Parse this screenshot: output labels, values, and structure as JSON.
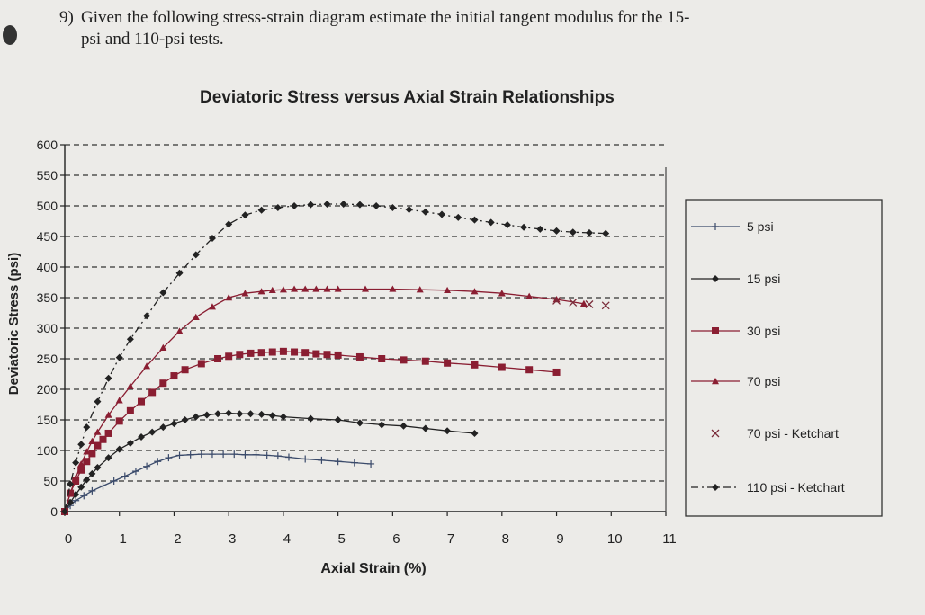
{
  "question": {
    "number": "9)",
    "line1": "Given the following stress-strain diagram estimate the initial tangent modulus for the 15-",
    "line2": "psi and 110-psi tests."
  },
  "chart_data": {
    "type": "line",
    "title": "Deviatoric Stress versus Axial Strain Relationships",
    "xlabel": "Axial Strain (%)",
    "ylabel": "Deviatoric Stress (psi)",
    "xlim": [
      0,
      11
    ],
    "ylim": [
      0,
      600
    ],
    "x_ticks": [
      "0",
      "1",
      "2",
      "3",
      "4",
      "5",
      "6",
      "7",
      "8",
      "9",
      "10",
      "11"
    ],
    "y_ticks": [
      "0",
      "50",
      "100",
      "150",
      "200",
      "250",
      "300",
      "350",
      "400",
      "450",
      "500",
      "550",
      "600"
    ],
    "grid": "horizontal dashed",
    "legend_position": "right",
    "series": [
      {
        "name": "5 psi",
        "color": "#3a4a6a",
        "marker": "plus",
        "dash": "solid",
        "x": [
          0,
          0.1,
          0.2,
          0.35,
          0.5,
          0.7,
          0.9,
          1.1,
          1.3,
          1.5,
          1.7,
          1.9,
          2.1,
          2.3,
          2.5,
          2.7,
          2.9,
          3.1,
          3.3,
          3.5,
          3.7,
          3.9,
          4.1,
          4.4,
          4.7,
          5.0,
          5.3,
          5.6
        ],
        "y": [
          0,
          10,
          18,
          26,
          34,
          42,
          50,
          58,
          66,
          74,
          82,
          88,
          92,
          93,
          94,
          94,
          94,
          94,
          93,
          93,
          92,
          91,
          89,
          86,
          84,
          82,
          80,
          78
        ]
      },
      {
        "name": "15 psi",
        "color": "#222222",
        "marker": "diamond",
        "dash": "solid",
        "x": [
          0,
          0.1,
          0.2,
          0.3,
          0.4,
          0.5,
          0.6,
          0.8,
          1.0,
          1.2,
          1.4,
          1.6,
          1.8,
          2.0,
          2.2,
          2.4,
          2.6,
          2.8,
          3.0,
          3.2,
          3.4,
          3.6,
          3.8,
          4.0,
          4.5,
          5.0,
          5.4,
          5.8,
          6.2,
          6.6,
          7.0,
          7.5
        ],
        "y": [
          0,
          15,
          28,
          40,
          52,
          62,
          72,
          88,
          102,
          112,
          122,
          130,
          138,
          144,
          150,
          155,
          158,
          160,
          161,
          160,
          160,
          159,
          157,
          155,
          152,
          150,
          145,
          142,
          140,
          136,
          132,
          128
        ]
      },
      {
        "name": "30 psi",
        "color": "#8a1e32",
        "marker": "square",
        "dash": "solid",
        "x": [
          0,
          0.1,
          0.2,
          0.3,
          0.4,
          0.5,
          0.6,
          0.7,
          0.8,
          1.0,
          1.2,
          1.4,
          1.6,
          1.8,
          2.0,
          2.2,
          2.5,
          2.8,
          3.0,
          3.2,
          3.4,
          3.6,
          3.8,
          4.0,
          4.2,
          4.4,
          4.6,
          4.8,
          5.0,
          5.4,
          5.8,
          6.2,
          6.6,
          7.0,
          7.5,
          8.0,
          8.5,
          9.0
        ],
        "y": [
          0,
          30,
          50,
          68,
          82,
          95,
          108,
          118,
          128,
          148,
          165,
          180,
          195,
          210,
          222,
          232,
          242,
          250,
          254,
          257,
          259,
          260,
          261,
          262,
          261,
          260,
          258,
          257,
          256,
          253,
          250,
          248,
          246,
          243,
          240,
          236,
          232,
          228
        ]
      },
      {
        "name": "70 psi",
        "color": "#8a1e32",
        "marker": "triangle",
        "dash": "solid",
        "x": [
          0,
          0.1,
          0.2,
          0.3,
          0.4,
          0.5,
          0.6,
          0.8,
          1.0,
          1.2,
          1.5,
          1.8,
          2.1,
          2.4,
          2.7,
          3.0,
          3.3,
          3.6,
          3.8,
          4.0,
          4.2,
          4.4,
          4.6,
          4.8,
          5.0,
          5.5,
          6.0,
          6.5,
          7.0,
          7.5,
          8.0,
          8.5,
          9.0,
          9.5
        ],
        "y": [
          0,
          30,
          55,
          78,
          98,
          115,
          130,
          158,
          182,
          205,
          238,
          268,
          295,
          318,
          335,
          350,
          357,
          360,
          362,
          363,
          364,
          364,
          364,
          364,
          364,
          364,
          364,
          363,
          362,
          360,
          357,
          352,
          347,
          340
        ]
      },
      {
        "name": "70 psi - Ketchart",
        "color": "#7a2c3a",
        "marker": "x",
        "dash": "none",
        "x": [
          9.0,
          9.3,
          9.6,
          9.9
        ],
        "y": [
          345,
          342,
          339,
          337
        ]
      },
      {
        "name": "110 psi - Ketchart",
        "color": "#222222",
        "marker": "diamond",
        "dash": "dashdot",
        "x": [
          0,
          0.1,
          0.2,
          0.3,
          0.4,
          0.6,
          0.8,
          1.0,
          1.2,
          1.5,
          1.8,
          2.1,
          2.4,
          2.7,
          3.0,
          3.3,
          3.6,
          3.9,
          4.2,
          4.5,
          4.8,
          5.1,
          5.4,
          5.7,
          6.0,
          6.3,
          6.6,
          6.9,
          7.2,
          7.5,
          7.8,
          8.1,
          8.4,
          8.7,
          9.0,
          9.3,
          9.6,
          9.9
        ],
        "y": [
          0,
          45,
          80,
          110,
          138,
          180,
          218,
          252,
          282,
          320,
          358,
          390,
          420,
          447,
          470,
          485,
          493,
          497,
          500,
          502,
          503,
          503,
          502,
          500,
          497,
          494,
          490,
          486,
          481,
          477,
          473,
          469,
          465,
          462,
          459,
          457,
          456,
          455
        ]
      }
    ]
  }
}
